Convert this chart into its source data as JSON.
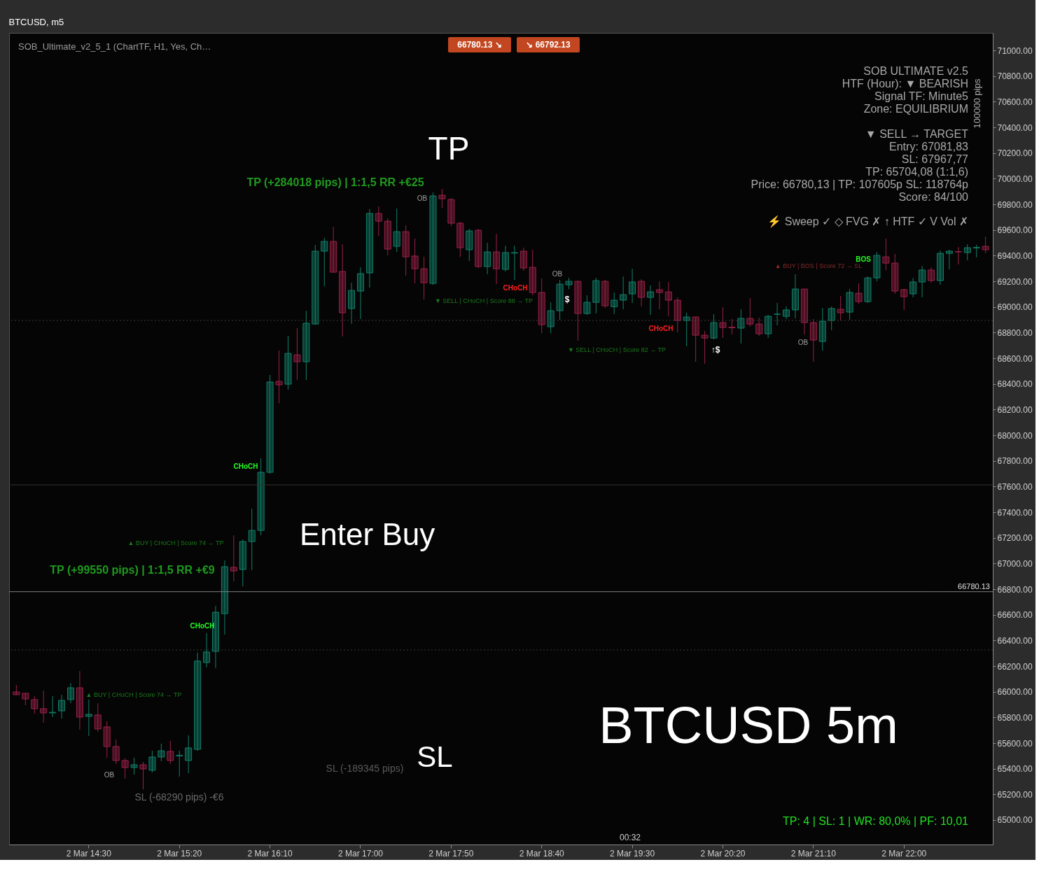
{
  "chart_data": {
    "type": "candlestick",
    "title": "BTCUSD, m5",
    "categories": [
      null,
      null,
      null,
      null,
      null,
      null,
      null,
      null,
      "2 Mar 14:30",
      null,
      null,
      null,
      null,
      null,
      null,
      null,
      null,
      null,
      "2 Mar 15:20",
      null,
      null,
      null,
      null,
      null,
      null,
      null,
      null,
      null,
      "2 Mar 16:10",
      null,
      null,
      null,
      null,
      null,
      null,
      null,
      null,
      null,
      "2 Mar 17:00",
      null,
      null,
      null,
      null,
      null,
      null,
      null,
      null,
      null,
      "2 Mar 17:50",
      null,
      null,
      null,
      null,
      null,
      null,
      null,
      null,
      null,
      "2 Mar 18:40",
      null,
      null,
      null,
      null,
      null,
      null,
      null,
      null,
      null,
      "2 Mar 19:30",
      null,
      null,
      null,
      null,
      null,
      null,
      null,
      null,
      null,
      "2 Mar 20:20",
      null,
      null,
      null,
      null,
      null,
      null,
      null,
      null,
      null,
      "2 Mar 21:10",
      null,
      null,
      null,
      null,
      null,
      null,
      null,
      null,
      null,
      "2 Mar 22:00",
      null,
      null,
      null,
      null,
      null,
      null,
      null,
      null,
      null
    ],
    "ohlc": [
      [
        65998,
        66053,
        65976,
        65977
      ],
      [
        65988,
        65988,
        65895,
        65944
      ],
      [
        65939,
        65966,
        65829,
        65868
      ],
      [
        65868,
        66009,
        65759,
        65835
      ],
      [
        65835,
        65966,
        65802,
        65840
      ],
      [
        65851,
        65977,
        65791,
        65933
      ],
      [
        65939,
        66069,
        65911,
        66031
      ],
      [
        66031,
        66162,
        65704,
        65802
      ],
      [
        65808,
        65939,
        65655,
        65824
      ],
      [
        65819,
        65911,
        65688,
        65710
      ],
      [
        65726,
        65769,
        65486,
        65573
      ],
      [
        65573,
        65628,
        65437,
        65464
      ],
      [
        65464,
        65482,
        65322,
        65409
      ],
      [
        65409,
        65486,
        65355,
        65431
      ],
      [
        65431,
        65453,
        65240,
        65398
      ],
      [
        65388,
        65540,
        65371,
        65491
      ],
      [
        65491,
        65595,
        65458,
        65540
      ],
      [
        65535,
        65617,
        65437,
        65464
      ],
      [
        65500,
        65540,
        65338,
        65505
      ],
      [
        65464,
        65660,
        65366,
        65562
      ],
      [
        65551,
        66305,
        65540,
        66239
      ],
      [
        66228,
        66457,
        66190,
        66310
      ],
      [
        66315,
        66670,
        66184,
        66620
      ],
      [
        66609,
        67024,
        66446,
        66975
      ],
      [
        66970,
        67220,
        66860,
        66942
      ],
      [
        66953,
        67187,
        66822,
        67171
      ],
      [
        67171,
        67428,
        66947,
        67258
      ],
      [
        67258,
        67820,
        67220,
        67711
      ],
      [
        67711,
        68470,
        67700,
        68415
      ],
      [
        68420,
        68660,
        68251,
        68393
      ],
      [
        68398,
        68775,
        68355,
        68638
      ],
      [
        68627,
        68835,
        68431,
        68573
      ],
      [
        68573,
        68971,
        68431,
        68873
      ],
      [
        68867,
        69484,
        68862,
        69435
      ],
      [
        69435,
        69538,
        69162,
        69511
      ],
      [
        69511,
        69625,
        69271,
        69271
      ],
      [
        69277,
        69489,
        68770,
        68955
      ],
      [
        68988,
        69189,
        68868,
        69129
      ],
      [
        69124,
        69309,
        68906,
        69260
      ],
      [
        69266,
        69762,
        69151,
        69729
      ],
      [
        69729,
        69784,
        69555,
        69669
      ],
      [
        69669,
        69691,
        69402,
        69451
      ],
      [
        69473,
        69767,
        69429,
        69587
      ],
      [
        69587,
        69636,
        69244,
        69391
      ],
      [
        69397,
        69533,
        69184,
        69298
      ],
      [
        69298,
        69391,
        69058,
        69189
      ],
      [
        69184,
        69893,
        69173,
        69866
      ],
      [
        69871,
        69920,
        69773,
        69844
      ],
      [
        69838,
        69849,
        69631,
        69653
      ],
      [
        69653,
        69664,
        69391,
        69462
      ],
      [
        69446,
        69609,
        69358,
        69593
      ],
      [
        69598,
        69609,
        69304,
        69315
      ],
      [
        69315,
        69500,
        69255,
        69429
      ],
      [
        69429,
        69571,
        69178,
        69298
      ],
      [
        69293,
        69478,
        69277,
        69424
      ],
      [
        69420,
        69478,
        69211,
        69424
      ],
      [
        69435,
        69462,
        69282,
        69304
      ],
      [
        69309,
        69446,
        69091,
        69113
      ],
      [
        69113,
        69222,
        68796,
        68862
      ],
      [
        68846,
        69036,
        68796,
        68971
      ],
      [
        68971,
        69211,
        68900,
        69178
      ],
      [
        69173,
        69227,
        69140,
        69200
      ],
      [
        69200,
        69205,
        68737,
        68949
      ],
      [
        68949,
        69091,
        68938,
        69036
      ],
      [
        69036,
        69227,
        68949,
        69205
      ],
      [
        69200,
        69211,
        68993,
        69009
      ],
      [
        69002,
        69113,
        68944,
        69053
      ],
      [
        69053,
        69238,
        68982,
        69096
      ],
      [
        69102,
        69298,
        69031,
        69195
      ],
      [
        69200,
        69216,
        69004,
        69075
      ],
      [
        69075,
        69167,
        68938,
        69118
      ],
      [
        69135,
        69200,
        68982,
        69113
      ],
      [
        69118,
        69195,
        68927,
        69053
      ],
      [
        69053,
        69075,
        68802,
        68895
      ],
      [
        68895,
        68955,
        68693,
        68922
      ],
      [
        68922,
        68922,
        68573,
        68780
      ],
      [
        68780,
        68813,
        68557,
        68758
      ],
      [
        68758,
        68944,
        68747,
        68878
      ],
      [
        68878,
        68998,
        68758,
        68840
      ],
      [
        68842,
        68906,
        68786,
        68838
      ],
      [
        68835,
        68982,
        68715,
        68911
      ],
      [
        68911,
        69069,
        68846,
        68867
      ],
      [
        68867,
        68917,
        68775,
        68791
      ],
      [
        68791,
        68938,
        68758,
        68927
      ],
      [
        68944,
        69031,
        68857,
        68944
      ],
      [
        68927,
        69004,
        68906,
        68977
      ],
      [
        68977,
        69255,
        68911,
        69140
      ],
      [
        69140,
        69140,
        68786,
        68878
      ],
      [
        68878,
        68906,
        68573,
        68742
      ],
      [
        68731,
        68993,
        68660,
        68889
      ],
      [
        68895,
        69004,
        68818,
        68988
      ],
      [
        68982,
        69085,
        68895,
        68955
      ],
      [
        68960,
        69140,
        68900,
        69113
      ],
      [
        69107,
        69184,
        69026,
        69042
      ],
      [
        69042,
        69238,
        69031,
        69227
      ],
      [
        69227,
        69429,
        69200,
        69402
      ],
      [
        69391,
        69533,
        69287,
        69342
      ],
      [
        69342,
        69413,
        69102,
        69124
      ],
      [
        69135,
        69140,
        68977,
        69080
      ],
      [
        69102,
        69227,
        69075,
        69195
      ],
      [
        69195,
        69320,
        69075,
        69288
      ],
      [
        69288,
        69309,
        69189,
        69206
      ],
      [
        69206,
        69440,
        69173,
        69418
      ],
      [
        69418,
        69446,
        69293,
        69435
      ],
      [
        69432,
        69467,
        69331,
        69429
      ],
      [
        69424,
        69489,
        69364,
        69462
      ],
      [
        69460,
        69484,
        69386,
        69464
      ],
      [
        69473,
        69549,
        69418,
        69446
      ]
    ],
    "colors": [
      "#9a2148",
      "#9a2148",
      "#9a2148",
      "#9a2148",
      "#11806a",
      "#11806a",
      "#11806a",
      "#9a2148",
      "#11806a",
      "#9a2148",
      "#9a2148",
      "#9a2148",
      "#9a2148",
      "#11806a",
      "#9a2148",
      "#11806a",
      "#11806a",
      "#9a2148",
      "#11806a",
      "#11806a",
      "#11806a",
      "#11806a",
      "#11806a",
      "#11806a",
      "#9a2148",
      "#11806a",
      "#11806a",
      "#11806a",
      "#11806a",
      "#9a2148",
      "#11806a",
      "#9a2148",
      "#11806a",
      "#11806a",
      "#11806a",
      "#9a2148",
      "#9a2148",
      "#11806a",
      "#11806a",
      "#11806a",
      "#9a2148",
      "#9a2148",
      "#11806a",
      "#9a2148",
      "#9a2148",
      "#9a2148",
      "#11806a",
      "#9a2148",
      "#9a2148",
      "#9a2148",
      "#11806a",
      "#9a2148",
      "#11806a",
      "#9a2148",
      "#11806a",
      "#11806a",
      "#9a2148",
      "#9a2148",
      "#9a2148",
      "#11806a",
      "#11806a",
      "#11806a",
      "#9a2148",
      "#11806a",
      "#11806a",
      "#9a2148",
      "#11806a",
      "#11806a",
      "#11806a",
      "#9a2148",
      "#11806a",
      "#9a2148",
      "#9a2148",
      "#9a2148",
      "#11806a",
      "#9a2148",
      "#9a2148",
      "#11806a",
      "#9a2148",
      "#9a2148",
      "#11806a",
      "#9a2148",
      "#9a2148",
      "#11806a",
      "#11806a",
      "#11806a",
      "#11806a",
      "#9a2148",
      "#9a2148",
      "#11806a",
      "#11806a",
      "#9a2148",
      "#11806a",
      "#9a2148",
      "#11806a",
      "#11806a",
      "#9a2148",
      "#9a2148",
      "#9a2148",
      "#11806a",
      "#11806a",
      "#9a2148",
      "#11806a",
      "#11806a",
      "#9a2148",
      "#11806a",
      "#11806a",
      "#9a2148"
    ],
    "ylim": [
      64809,
      71137
    ],
    "yticks": [
      {
        "value": 65000,
        "label": "65000.00"
      },
      {
        "value": 65200,
        "label": "65200.00"
      },
      {
        "value": 65400,
        "label": "65400.00"
      },
      {
        "value": 65600,
        "label": "65600.00"
      },
      {
        "value": 65800,
        "label": "65800.00"
      },
      {
        "value": 66000,
        "label": "66000.00"
      },
      {
        "value": 66200,
        "label": "66200.00"
      },
      {
        "value": 66400,
        "label": "66400.00"
      },
      {
        "value": 66600,
        "label": "66600.00"
      },
      {
        "value": 66800,
        "label": "66800.00"
      },
      {
        "value": 67000,
        "label": "67000.00"
      },
      {
        "value": 67200,
        "label": "67200.00"
      },
      {
        "value": 67400,
        "label": "67400.00"
      },
      {
        "value": 67600,
        "label": "67600.00"
      },
      {
        "value": 67800,
        "label": "67800.00"
      },
      {
        "value": 68000,
        "label": "68000.00"
      },
      {
        "value": 68200,
        "label": "68200.00"
      },
      {
        "value": 68400,
        "label": "68400.00"
      },
      {
        "value": 68600,
        "label": "68600.00"
      },
      {
        "value": 68800,
        "label": "68800.00"
      },
      {
        "value": 69000,
        "label": "69000.00"
      },
      {
        "value": 69200,
        "label": "69200.00"
      },
      {
        "value": 69400,
        "label": "69400.00"
      },
      {
        "value": 69600,
        "label": "69600.00"
      },
      {
        "value": 69800,
        "label": "69800.00"
      },
      {
        "value": 70000,
        "label": "70000.00"
      },
      {
        "value": 70200,
        "label": "70200.00"
      },
      {
        "value": 70400,
        "label": "70400.00"
      },
      {
        "value": 70600,
        "label": "70600.00"
      },
      {
        "value": 70800,
        "label": "70800.00"
      },
      {
        "value": 71000,
        "label": "71000.00"
      }
    ],
    "grid": false,
    "ref_lines": [
      {
        "axis": "y",
        "value": 66780.13,
        "label": "66780.13",
        "color": "#808080"
      },
      {
        "axis": "y",
        "value": 67613,
        "color": "#333333"
      },
      {
        "axis": "y",
        "value": 68895,
        "color": "#3a3a3a",
        "line_style": "dotted"
      },
      {
        "axis": "y",
        "value": 66326,
        "color": "#3a3a3a",
        "line_style": "dotted"
      }
    ],
    "annotations": [
      "TP  (+284018 pips)  |  1:1,5 RR  +€25",
      "TP  (+99550 pips)  |  1:1,5 RR  +€9",
      "SL  (-68290 pips)  -€6",
      "SL  (-189345 pips)",
      "▲ BUY  |  CHoCH  |  Score 74  → TP",
      "▲ BUY  |  CHoCH  |  Score 74  → TP",
      "▼ SELL  |  CHoCH  |  Score 88  → TP",
      "▼ SELL  |  CHoCH  |  Score 82  → TP",
      "▲ BUY  |  BOS  |  Score 72  → SL",
      "CHoCH",
      "CHoCH",
      "CHoCH",
      "CHoCH",
      "BOS",
      "OB",
      "OB",
      "OB",
      "OB",
      "$",
      "↑$",
      "TP",
      "Enter Buy",
      "SL",
      "BTCUSD 5m",
      "SOB_Ultimate_v2_5_1 (ChartTF, H1, Yes, Ch…",
      "66780.13 ↘",
      "↘ 66792.13",
      "SOB ULTIMATE v2.5",
      "HTF (Hour): ▼ BEARISH",
      "Signal TF: Minute5",
      "Zone: EQUILIBRIUM",
      "▼ SELL → TARGET",
      "Entry: 67081,83",
      "SL: 67967,77",
      "TP: 65704,08 (1:1,6)",
      "Price: 66780,13  |  TP: 107605p  SL: 118764p",
      "Score: 84/100",
      "⚡ Sweep ✓ ◇ FVG ✗ ↑ HTF ✓ V Vol ✗",
      "100000 pips",
      "00:32",
      "TP: 4  |  SL: 1  |  WR: 80,0%  |  PF: 10,01"
    ]
  }
}
